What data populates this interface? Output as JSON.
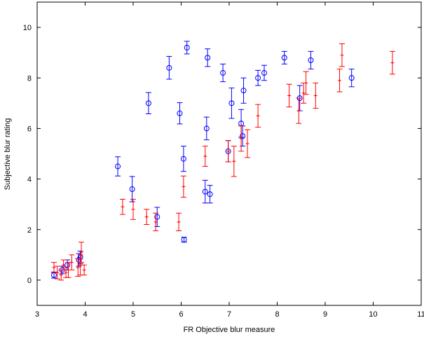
{
  "chart_data": {
    "type": "scatter",
    "xlabel": "FR Objective blur measure",
    "ylabel": "Subjective blur rating",
    "xlim": [
      3,
      11
    ],
    "ylim": [
      -1,
      11
    ],
    "x_ticks": [
      "3",
      "4",
      "5",
      "6",
      "7",
      "8",
      "9",
      "10",
      "11"
    ],
    "y_ticks": [
      "0",
      "2",
      "4",
      "6",
      "8",
      "10"
    ],
    "x_tick_values": [
      3,
      4,
      5,
      6,
      7,
      8,
      9,
      10,
      11
    ],
    "y_tick_values": [
      0,
      2,
      4,
      6,
      8,
      10
    ],
    "grid": false,
    "series": [
      {
        "marker": "circle",
        "color": "#0000ff",
        "points": [
          {
            "x": 3.35,
            "y": 0.2,
            "err": 0.12
          },
          {
            "x": 3.52,
            "y": 0.4,
            "err": 0.15
          },
          {
            "x": 3.63,
            "y": 0.6,
            "err": 0.2
          },
          {
            "x": 3.87,
            "y": 0.8,
            "err": 0.25
          },
          {
            "x": 3.9,
            "y": 0.9,
            "err": 0.25
          },
          {
            "x": 4.68,
            "y": 4.5,
            "err": 0.38
          },
          {
            "x": 4.98,
            "y": 3.6,
            "err": 0.5
          },
          {
            "x": 5.5,
            "y": 2.5,
            "err": 0.38
          },
          {
            "x": 5.32,
            "y": 7.0,
            "err": 0.42
          },
          {
            "x": 5.75,
            "y": 8.4,
            "err": 0.45
          },
          {
            "x": 5.97,
            "y": 6.6,
            "err": 0.42
          },
          {
            "x": 6.05,
            "y": 4.8,
            "err": 0.5
          },
          {
            "x": 6.06,
            "y": 1.6,
            "err": 0.1
          },
          {
            "x": 6.12,
            "y": 9.2,
            "err": 0.25
          },
          {
            "x": 6.5,
            "y": 3.5,
            "err": 0.45
          },
          {
            "x": 6.53,
            "y": 6.0,
            "err": 0.45
          },
          {
            "x": 6.55,
            "y": 8.8,
            "err": 0.35
          },
          {
            "x": 6.6,
            "y": 3.4,
            "err": 0.35
          },
          {
            "x": 6.87,
            "y": 8.2,
            "err": 0.35
          },
          {
            "x": 6.98,
            "y": 5.1,
            "err": 0.42
          },
          {
            "x": 7.05,
            "y": 7.0,
            "err": 0.6
          },
          {
            "x": 7.25,
            "y": 6.2,
            "err": 0.55
          },
          {
            "x": 7.28,
            "y": 5.7,
            "err": 0.4
          },
          {
            "x": 7.3,
            "y": 7.5,
            "err": 0.5
          },
          {
            "x": 7.6,
            "y": 8.0,
            "err": 0.3
          },
          {
            "x": 7.73,
            "y": 8.2,
            "err": 0.3
          },
          {
            "x": 8.15,
            "y": 8.8,
            "err": 0.25
          },
          {
            "x": 8.47,
            "y": 7.2,
            "err": 0.5
          },
          {
            "x": 8.7,
            "y": 8.7,
            "err": 0.35
          },
          {
            "x": 9.55,
            "y": 8.0,
            "err": 0.35
          }
        ]
      },
      {
        "marker": "plus",
        "color": "#ff0000",
        "points": [
          {
            "x": 3.35,
            "y": 0.5,
            "err": 0.2
          },
          {
            "x": 3.42,
            "y": 0.3,
            "err": 0.25
          },
          {
            "x": 3.5,
            "y": 0.2,
            "err": 0.2
          },
          {
            "x": 3.55,
            "y": 0.6,
            "err": 0.2
          },
          {
            "x": 3.6,
            "y": 0.3,
            "err": 0.2
          },
          {
            "x": 3.65,
            "y": 0.4,
            "err": 0.3
          },
          {
            "x": 3.72,
            "y": 0.7,
            "err": 0.3
          },
          {
            "x": 3.85,
            "y": 0.5,
            "err": 0.35
          },
          {
            "x": 3.9,
            "y": 0.6,
            "err": 0.4
          },
          {
            "x": 3.92,
            "y": 1.1,
            "err": 0.4
          },
          {
            "x": 3.98,
            "y": 0.4,
            "err": 0.2
          },
          {
            "x": 4.78,
            "y": 2.9,
            "err": 0.3
          },
          {
            "x": 5.0,
            "y": 2.8,
            "err": 0.4
          },
          {
            "x": 5.28,
            "y": 2.5,
            "err": 0.3
          },
          {
            "x": 5.47,
            "y": 2.3,
            "err": 0.35
          },
          {
            "x": 5.95,
            "y": 2.3,
            "err": 0.35
          },
          {
            "x": 6.05,
            "y": 3.7,
            "err": 0.42
          },
          {
            "x": 6.5,
            "y": 4.9,
            "err": 0.4
          },
          {
            "x": 6.98,
            "y": 5.1,
            "err": 0.42
          },
          {
            "x": 7.1,
            "y": 4.7,
            "err": 0.6
          },
          {
            "x": 7.25,
            "y": 5.6,
            "err": 0.5
          },
          {
            "x": 7.38,
            "y": 5.4,
            "err": 0.55
          },
          {
            "x": 7.6,
            "y": 6.5,
            "err": 0.45
          },
          {
            "x": 8.25,
            "y": 7.3,
            "err": 0.45
          },
          {
            "x": 8.45,
            "y": 6.7,
            "err": 0.5
          },
          {
            "x": 8.55,
            "y": 7.4,
            "err": 0.4
          },
          {
            "x": 8.6,
            "y": 7.8,
            "err": 0.45
          },
          {
            "x": 8.8,
            "y": 7.3,
            "err": 0.5
          },
          {
            "x": 9.3,
            "y": 7.9,
            "err": 0.45
          },
          {
            "x": 9.35,
            "y": 8.9,
            "err": 0.45
          },
          {
            "x": 10.4,
            "y": 8.6,
            "err": 0.45
          }
        ]
      }
    ]
  }
}
